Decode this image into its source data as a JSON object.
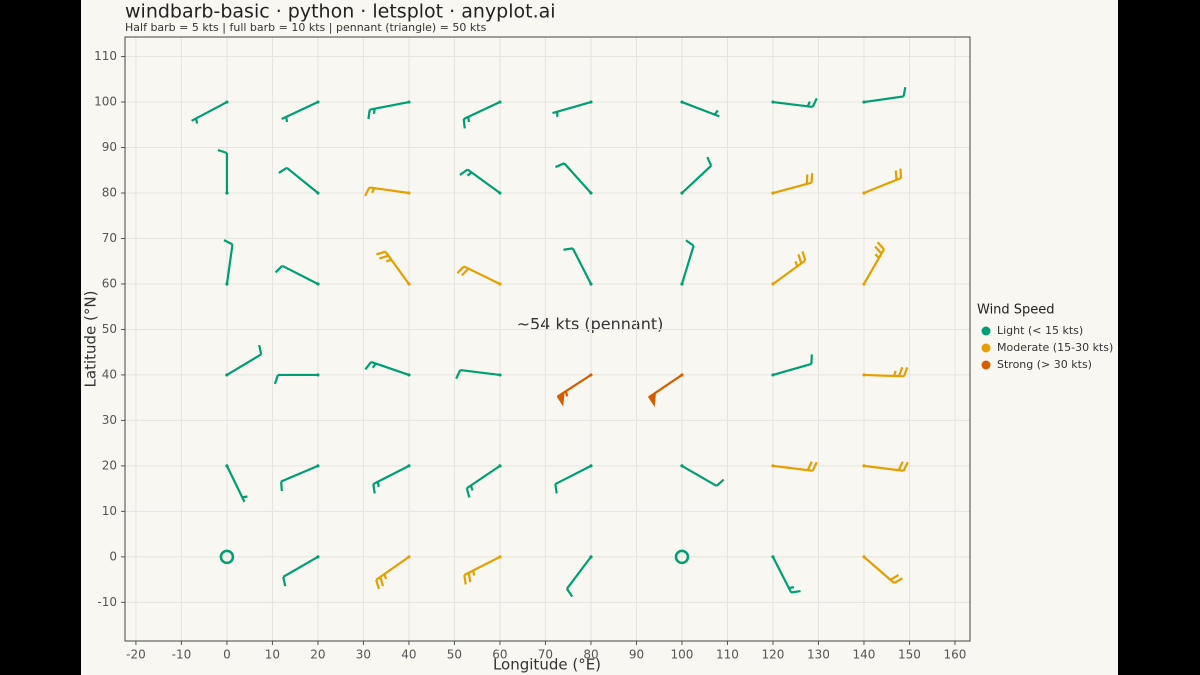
{
  "chart_data": {
    "type": "windbarb",
    "title": "windbarb-basic · python · letsplot · anyplot.ai",
    "subtitle": "Half barb = 5 kts  |  full barb = 10 kts  |  pennant (triangle) = 50 kts",
    "x_label": "Longitude (°E)",
    "y_label": "Latitude (°N)",
    "legend_title": "Wind Speed",
    "annotation": "~54 kts (pennant)",
    "xlim": [
      -22.4,
      163.3
    ],
    "ylim": [
      -18.5,
      114.3
    ],
    "xticks": [
      -20,
      -10,
      0,
      10,
      20,
      30,
      40,
      50,
      60,
      70,
      80,
      90,
      100,
      110,
      120,
      130,
      140,
      150,
      160
    ],
    "yticks": [
      -10,
      0,
      10,
      20,
      30,
      40,
      50,
      60,
      70,
      80,
      90,
      100,
      110
    ],
    "grid": true,
    "series": [
      {
        "name": "Light (< 15 kts)",
        "color": "#009e73",
        "lon": [
          0,
          20,
          40,
          60,
          80,
          100,
          120,
          140,
          0,
          20,
          60,
          80,
          100,
          0,
          20,
          80,
          100,
          0,
          20,
          40,
          60,
          120,
          0,
          20,
          40,
          60,
          80,
          100,
          0,
          20,
          80,
          100,
          120
        ],
        "lat": [
          100,
          100,
          100,
          100,
          100,
          100,
          100,
          100,
          80,
          80,
          80,
          80,
          80,
          60,
          60,
          60,
          60,
          40,
          40,
          40,
          40,
          40,
          20,
          20,
          20,
          20,
          20,
          20,
          0,
          0,
          0,
          0,
          0
        ],
        "speed": [
          5,
          5,
          13,
          13,
          5,
          5,
          13,
          10,
          10,
          10,
          13,
          10,
          10,
          10,
          10,
          10,
          10,
          10,
          10,
          13,
          10,
          10,
          5,
          10,
          13,
          13,
          10,
          10,
          0,
          10,
          10,
          0,
          13
        ],
        "direction": [
          242,
          245,
          259,
          245,
          254,
          111,
          97,
          82,
          0,
          309,
          306,
          318,
          47,
          8,
          297,
          333,
          17,
          59,
          270,
          289,
          277,
          74,
          154,
          247,
          243,
          236,
          243,
          120,
          0,
          240,
          217,
          0,
          153
        ]
      },
      {
        "name": "Moderate (15-30 kts)",
        "color": "#e69f00",
        "lon": [
          40,
          120,
          140,
          40,
          60,
          120,
          140,
          140,
          120,
          140,
          40,
          60,
          140
        ],
        "lat": [
          80,
          80,
          80,
          60,
          60,
          60,
          60,
          40,
          20,
          20,
          0,
          0,
          0
        ],
        "speed": [
          17,
          20,
          20,
          25,
          20,
          25,
          25,
          25,
          20,
          20,
          25,
          25,
          20
        ],
        "direction": [
          278,
          75,
          68,
          324,
          296,
          54,
          30,
          92,
          97,
          97,
          235,
          243,
          131
        ]
      },
      {
        "name": "Strong (> 30 kts)",
        "color": "#d55e00",
        "lon": [
          80,
          100
        ],
        "lat": [
          40,
          40
        ],
        "speed": [
          54,
          52
        ],
        "direction": [
          237,
          236
        ]
      }
    ]
  }
}
